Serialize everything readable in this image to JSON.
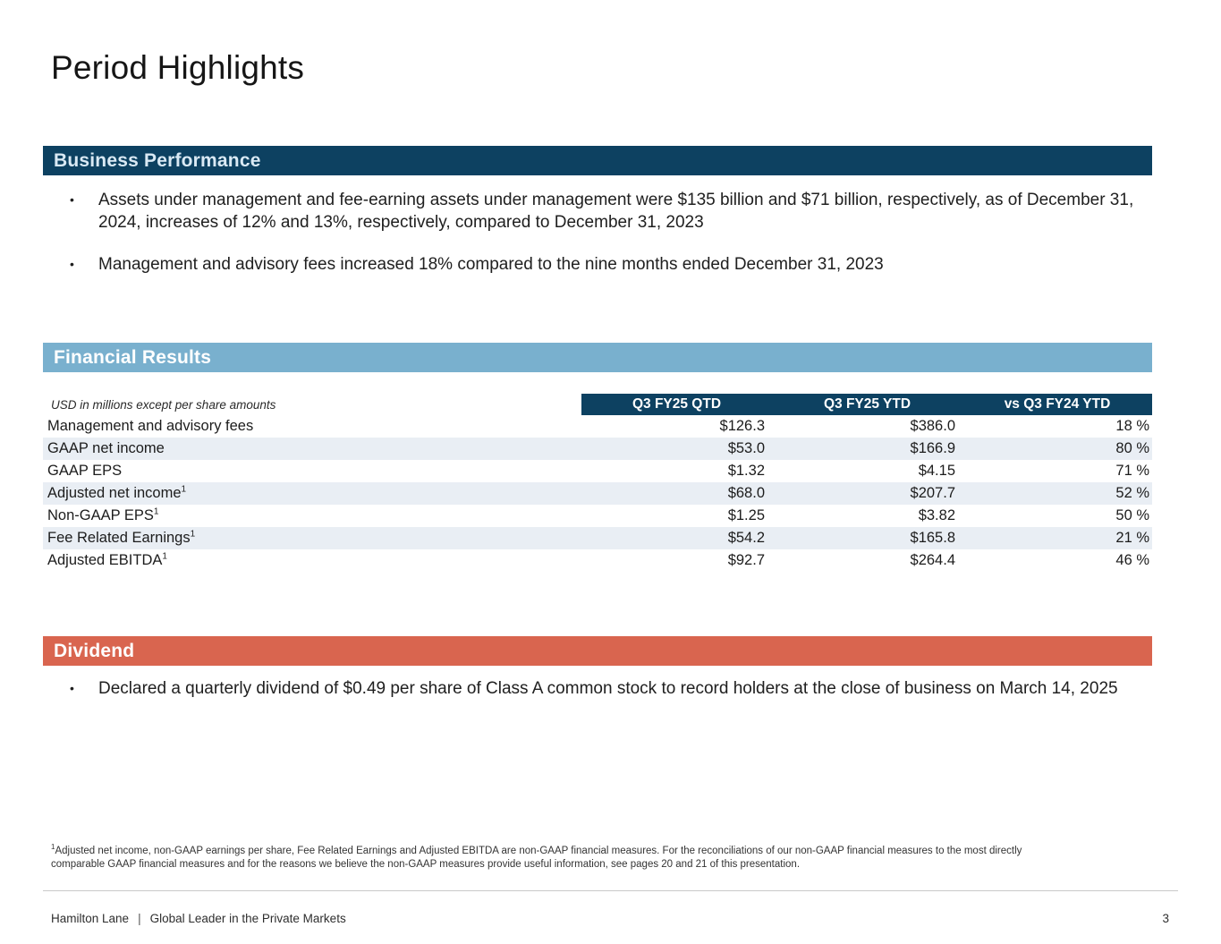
{
  "slide": {
    "title": "Period Highlights",
    "page_number": "3"
  },
  "business": {
    "header": "Business Performance",
    "bullets": [
      "Assets under management and fee-earning assets under management were $135 billion and $71 billion, respectively, as of December 31, 2024, increases of 12% and 13%, respectively, compared to December 31, 2023",
      "Management and advisory fees increased 18% compared to the nine months ended December 31, 2023"
    ]
  },
  "financial": {
    "header": "Financial Results",
    "note": "USD in millions except per share amounts",
    "columns": [
      "Q3 FY25 QTD",
      "Q3 FY25 YTD",
      "vs Q3 FY24 YTD"
    ],
    "rows": [
      {
        "label": "Management and advisory fees",
        "footnote_ref": false,
        "qtd": "$126.3",
        "ytd": "$386.0",
        "vs": "18 %"
      },
      {
        "label": "GAAP net income",
        "footnote_ref": false,
        "qtd": "$53.0",
        "ytd": "$166.9",
        "vs": "80 %"
      },
      {
        "label": "GAAP EPS",
        "footnote_ref": false,
        "qtd": "$1.32",
        "ytd": "$4.15",
        "vs": "71 %"
      },
      {
        "label": "Adjusted net income",
        "footnote_ref": true,
        "qtd": "$68.0",
        "ytd": "$207.7",
        "vs": "52 %"
      },
      {
        "label": "Non-GAAP EPS",
        "footnote_ref": true,
        "qtd": "$1.25",
        "ytd": "$3.82",
        "vs": "50 %"
      },
      {
        "label": "Fee Related Earnings",
        "footnote_ref": true,
        "qtd": "$54.2",
        "ytd": "$165.8",
        "vs": "21 %"
      },
      {
        "label": "Adjusted EBITDA",
        "footnote_ref": true,
        "qtd": "$92.7",
        "ytd": "$264.4",
        "vs": "46 %"
      }
    ]
  },
  "dividend": {
    "header": "Dividend",
    "bullets": [
      "Declared a quarterly dividend of $0.49 per share of Class A common stock to record holders at the close of business on March 14, 2025"
    ]
  },
  "footnote": {
    "sup": "1",
    "text": "Adjusted net income, non-GAAP earnings per share, Fee Related Earnings and Adjusted EBITDA are non-GAAP financial measures. For the reconciliations of our non-GAAP financial measures to the most directly comparable GAAP financial measures and for the reasons we believe the non-GAAP measures provide useful information, see pages 20 and 21 of this presentation."
  },
  "footer": {
    "company": "Hamilton Lane",
    "separator": "|",
    "tagline": "Global Leader in the Private Markets"
  },
  "colors": {
    "navy": "#0d4161",
    "light_blue": "#79b0ce",
    "salmon": "#d9654f",
    "row_shade": "#e9eef4"
  }
}
